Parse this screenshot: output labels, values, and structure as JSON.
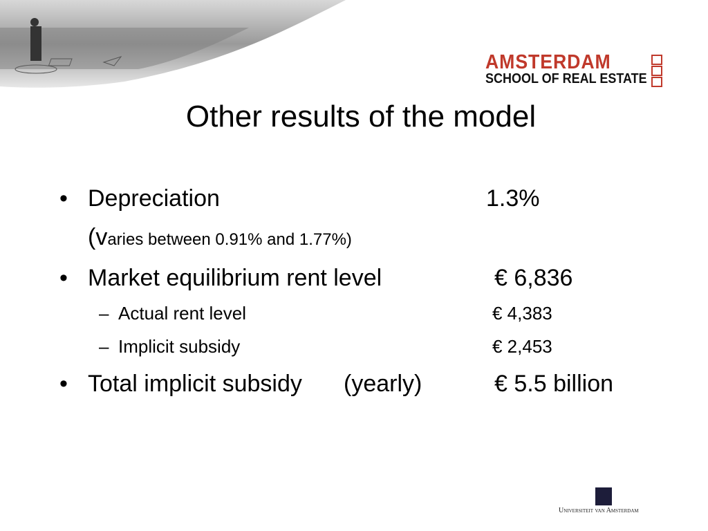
{
  "header": {
    "logo": {
      "line1": "AMSTERDAM",
      "line2": "SCHOOL OF REAL ESTATE"
    }
  },
  "title": "Other results of the model",
  "items": [
    {
      "label": "Depreciation",
      "value": "1.3%",
      "note": "(varies between 0.91% and 1.77%)"
    },
    {
      "label": "Market equilibrium rent level",
      "value": "€ 6,836",
      "subitems": [
        {
          "label": "Actual rent level",
          "value": "€ 4,383"
        },
        {
          "label": "Implicit subsidy",
          "value": "€ 2,453"
        }
      ]
    },
    {
      "label": "Total implicit subsidy",
      "qualifier": "(yearly)",
      "value": "€ 5.5 billion"
    }
  ],
  "footer": {
    "university": "Universiteit van Amsterdam"
  }
}
